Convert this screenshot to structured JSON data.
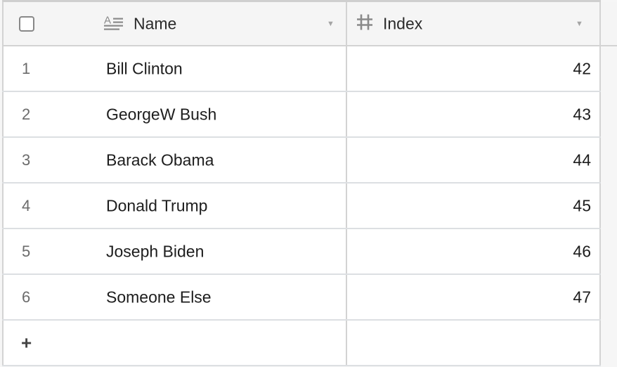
{
  "columns": [
    {
      "label": "Name",
      "icon": "text-field-icon"
    },
    {
      "label": "Index",
      "icon": "hash-icon"
    }
  ],
  "rows": [
    {
      "num": "1",
      "name": "Bill Clinton",
      "index": "42"
    },
    {
      "num": "2",
      "name": "GeorgeW Bush",
      "index": "43"
    },
    {
      "num": "3",
      "name": "Barack Obama",
      "index": "44"
    },
    {
      "num": "4",
      "name": "Donald Trump",
      "index": "45"
    },
    {
      "num": "5",
      "name": "Joseph Biden",
      "index": "46"
    },
    {
      "num": "6",
      "name": "Someone Else",
      "index": "47"
    }
  ],
  "add_row": {
    "icon": "plus-icon",
    "label": "+"
  }
}
